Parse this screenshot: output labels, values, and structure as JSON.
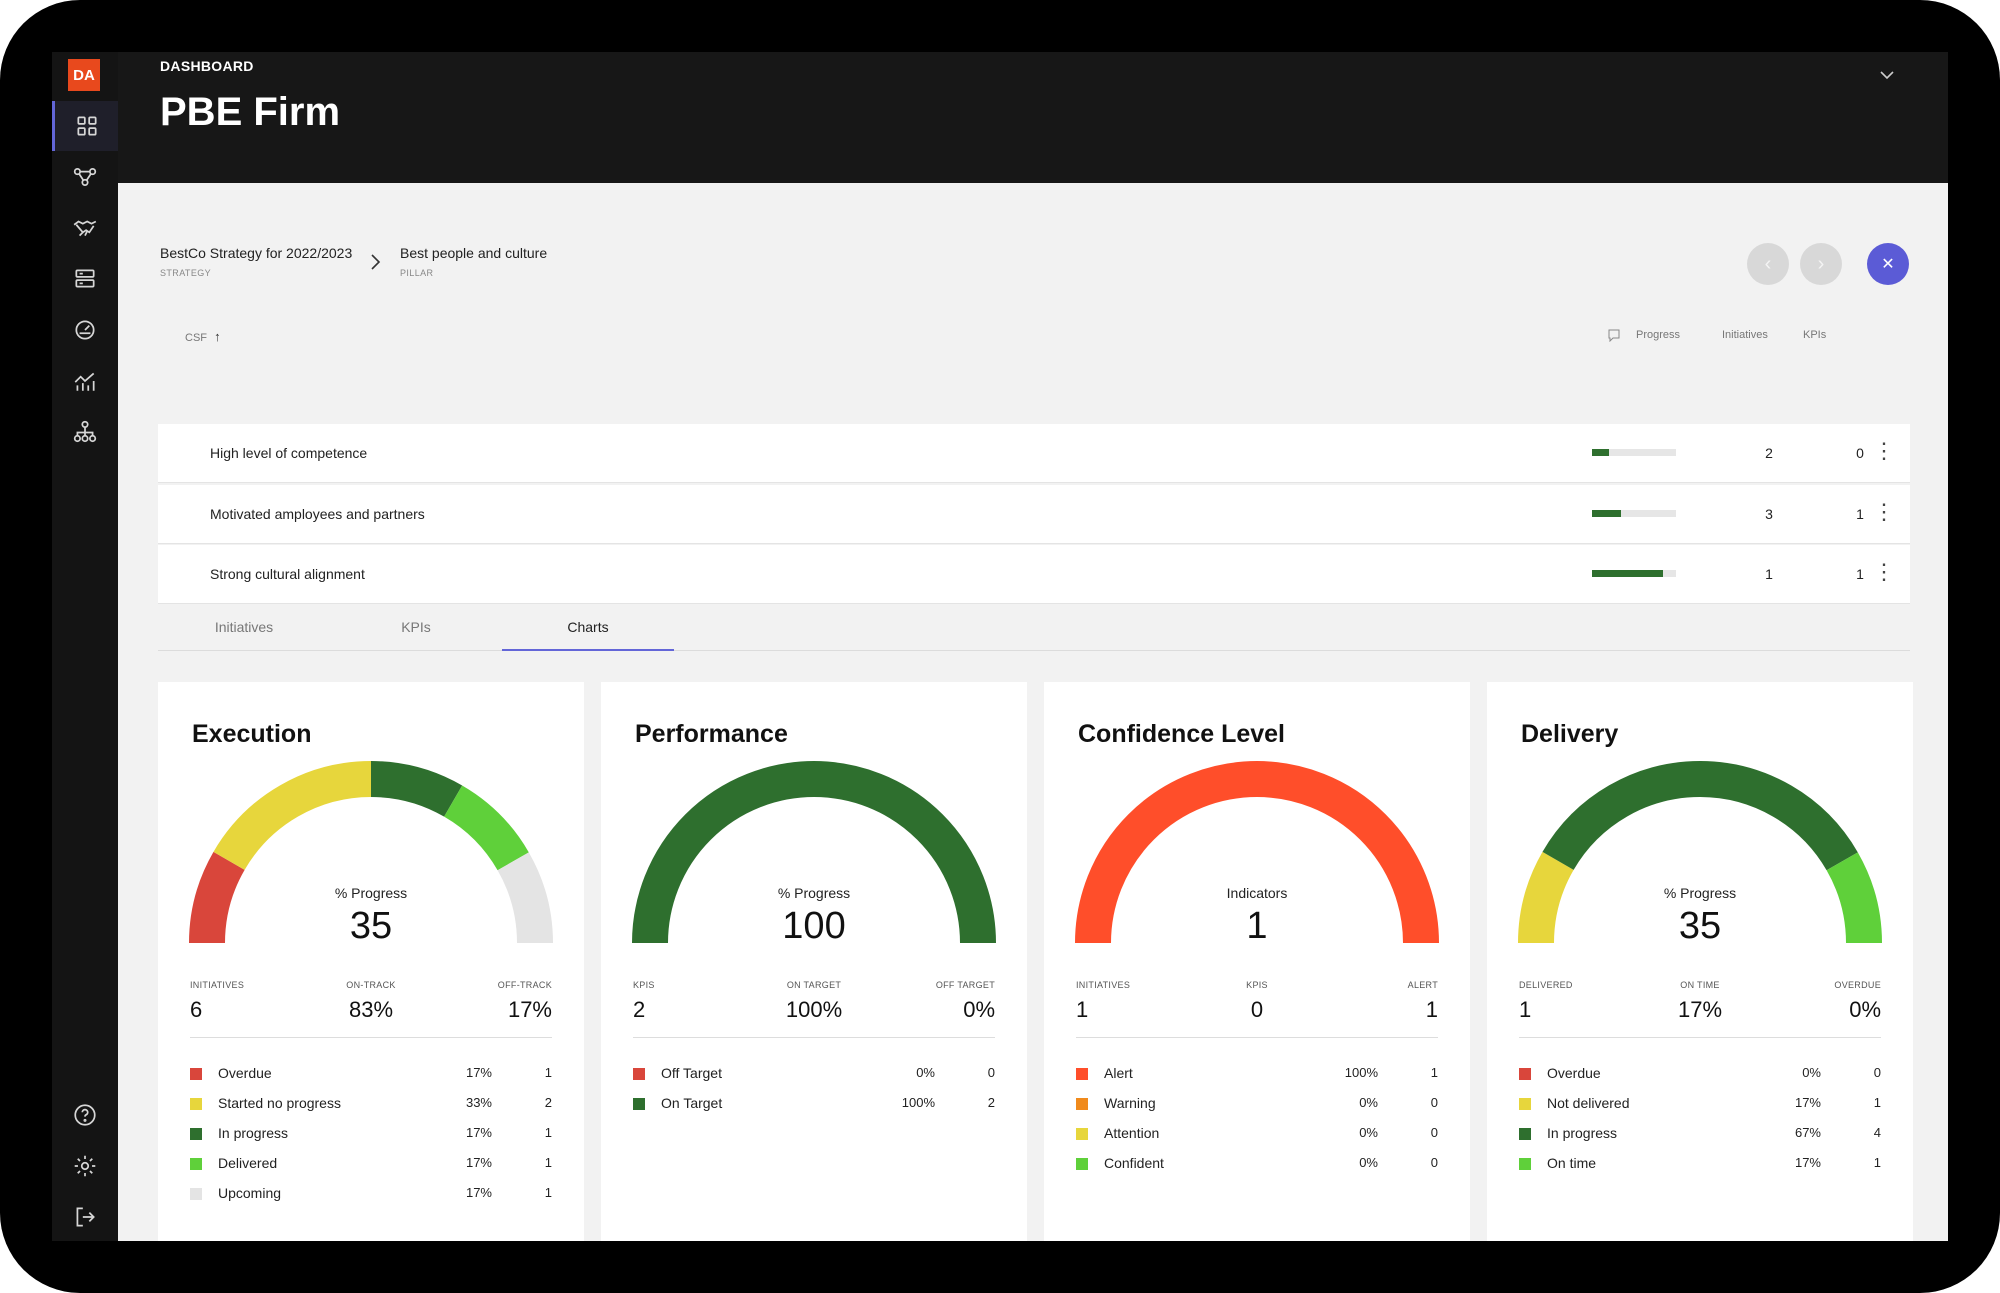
{
  "app": {
    "logo": "DA"
  },
  "sidebar": {
    "items": [
      {
        "name": "dashboard-icon"
      },
      {
        "name": "network-icon"
      },
      {
        "name": "handshake-icon"
      },
      {
        "name": "database-icon"
      },
      {
        "name": "gauge-icon"
      },
      {
        "name": "chart-icon"
      },
      {
        "name": "org-chart-icon"
      },
      {
        "name": "help-icon"
      },
      {
        "name": "gear-icon"
      },
      {
        "name": "logout-icon"
      }
    ]
  },
  "header": {
    "breadcrumb": "DASHBOARD",
    "title": "PBE Firm"
  },
  "breadcrumbs": [
    {
      "label": "BestCo Strategy for 2022/2023",
      "sub": "STRATEGY"
    },
    {
      "label": "Best people and culture",
      "sub": "PILLAR"
    }
  ],
  "table": {
    "headers": {
      "csf": "CSF",
      "progress": "Progress",
      "initiatives": "Initiatives",
      "kpis": "KPIs"
    },
    "rows": [
      {
        "name": "High level of competence",
        "progress": 0.2,
        "initiatives": "2",
        "kpis": "0"
      },
      {
        "name": "Motivated amployees and partners",
        "progress": 0.35,
        "initiatives": "3",
        "kpis": "1"
      },
      {
        "name": "Strong cultural alignment",
        "progress": 0.85,
        "initiatives": "1",
        "kpis": "1"
      }
    ]
  },
  "tabs": [
    {
      "label": "Initiatives"
    },
    {
      "label": "KPIs"
    },
    {
      "label": "Charts"
    }
  ],
  "active_tab": "Charts",
  "colors": {
    "red": "#d9463b",
    "yellow": "#e7d63c",
    "darkgreen": "#2e6f2e",
    "lightgreen": "#5fd03a",
    "grey": "#e4e4e4",
    "orange": "#ff4e2a",
    "orange2": "#f08a1c",
    "accent": "#5b5bd6"
  },
  "cards": [
    {
      "title": "Execution",
      "caption": "% Progress",
      "value": "35",
      "summary": [
        {
          "label": "INITIATIVES",
          "value": "6"
        },
        {
          "label": "ON-TRACK",
          "value": "83%"
        },
        {
          "label": "OFF-TRACK",
          "value": "17%"
        }
      ],
      "legend": [
        {
          "label": "Overdue",
          "pct": "17%",
          "count": "1",
          "color": "#d9463b"
        },
        {
          "label": "Started no progress",
          "pct": "33%",
          "count": "2",
          "color": "#e7d63c"
        },
        {
          "label": "In progress",
          "pct": "17%",
          "count": "1",
          "color": "#2e6f2e"
        },
        {
          "label": "Delivered",
          "pct": "17%",
          "count": "1",
          "color": "#5fd03a"
        },
        {
          "label": "Upcoming",
          "pct": "17%",
          "count": "1",
          "color": "#e4e4e4"
        }
      ],
      "segments": [
        0.167,
        0.333,
        0.167,
        0.167,
        0.166
      ]
    },
    {
      "title": "Performance",
      "caption": "% Progress",
      "value": "100",
      "summary": [
        {
          "label": "KPIS",
          "value": "2"
        },
        {
          "label": "ON TARGET",
          "value": "100%"
        },
        {
          "label": "OFF TARGET",
          "value": "0%"
        }
      ],
      "legend": [
        {
          "label": "Off Target",
          "pct": "0%",
          "count": "0",
          "color": "#d9463b"
        },
        {
          "label": "On Target",
          "pct": "100%",
          "count": "2",
          "color": "#2e6f2e"
        }
      ],
      "segments": [
        0,
        1
      ]
    },
    {
      "title": "Confidence Level",
      "caption": "Indicators",
      "value": "1",
      "summary": [
        {
          "label": "INITIATIVES",
          "value": "1"
        },
        {
          "label": "KPIS",
          "value": "0"
        },
        {
          "label": "ALERT",
          "value": "1"
        }
      ],
      "legend": [
        {
          "label": "Alert",
          "pct": "100%",
          "count": "1",
          "color": "#ff4e2a"
        },
        {
          "label": "Warning",
          "pct": "0%",
          "count": "0",
          "color": "#f08a1c"
        },
        {
          "label": "Attention",
          "pct": "0%",
          "count": "0",
          "color": "#e7d63c"
        },
        {
          "label": "Confident",
          "pct": "0%",
          "count": "0",
          "color": "#5fd03a"
        }
      ],
      "segments": [
        1,
        0,
        0,
        0
      ]
    },
    {
      "title": "Delivery",
      "caption": "% Progress",
      "value": "35",
      "summary": [
        {
          "label": "DELIVERED",
          "value": "1"
        },
        {
          "label": "ON TIME",
          "value": "17%"
        },
        {
          "label": "OVERDUE",
          "value": "0%"
        }
      ],
      "legend": [
        {
          "label": "Overdue",
          "pct": "0%",
          "count": "0",
          "color": "#d9463b"
        },
        {
          "label": "Not delivered",
          "pct": "17%",
          "count": "1",
          "color": "#e7d63c"
        },
        {
          "label": "In progress",
          "pct": "67%",
          "count": "4",
          "color": "#2e6f2e"
        },
        {
          "label": "On time",
          "pct": "17%",
          "count": "1",
          "color": "#5fd03a"
        }
      ],
      "segments": [
        0,
        0.167,
        0.667,
        0.166
      ]
    }
  ]
}
